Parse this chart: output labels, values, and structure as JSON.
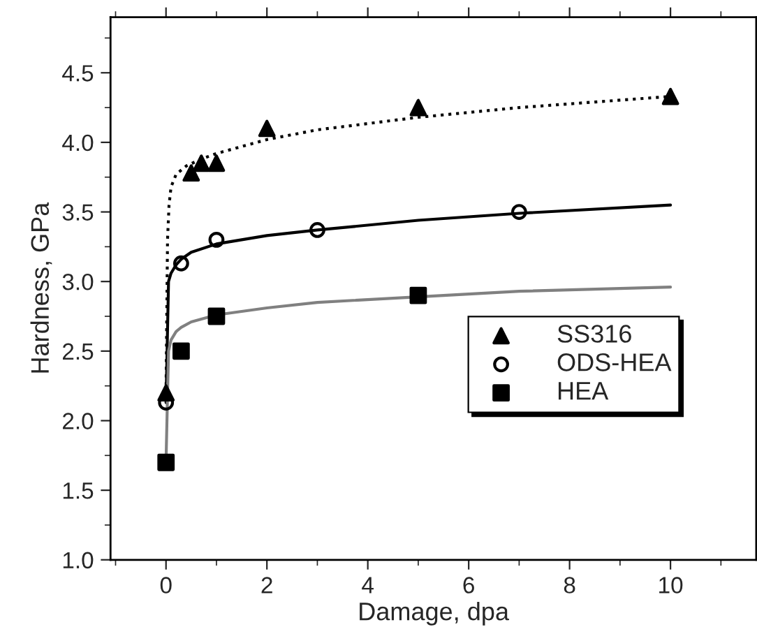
{
  "chart_data": {
    "type": "scatter",
    "xlabel": "Damage, dpa",
    "ylabel": "Hardness, GPa",
    "xlim": [
      -1.1,
      11.7
    ],
    "ylim": [
      1.0,
      4.9
    ],
    "xticks": [
      0,
      2,
      4,
      6,
      8,
      10
    ],
    "yticks": [
      {
        "value": 1.0,
        "label": "1.0"
      },
      {
        "value": 1.5,
        "label": "1.5"
      },
      {
        "value": 2.0,
        "label": "2.0"
      },
      {
        "value": 2.5,
        "label": "2.5"
      },
      {
        "value": 3.0,
        "label": "3.0"
      },
      {
        "value": 3.5,
        "label": "3.5"
      },
      {
        "value": 4.0,
        "label": "4.0"
      },
      {
        "value": 4.5,
        "label": "4.5"
      }
    ],
    "grid": false,
    "legend": "right",
    "series": [
      {
        "name": "SS316",
        "color": "#000000",
        "marker": "triangle",
        "x": [
          0,
          0.5,
          0.7,
          1,
          2,
          5,
          10
        ],
        "values": [
          2.2,
          3.78,
          3.85,
          3.85,
          4.1,
          4.25,
          4.33
        ]
      },
      {
        "name": "ODS-HEA",
        "color": "#000000",
        "marker": "circle",
        "x": [
          0,
          0.3,
          1,
          3,
          7
        ],
        "values": [
          2.13,
          3.13,
          3.3,
          3.37,
          3.5
        ]
      },
      {
        "name": "HEA",
        "color": "#000000",
        "marker": "square",
        "x": [
          0,
          0.3,
          1,
          5
        ],
        "values": [
          1.7,
          2.5,
          2.75,
          2.9
        ]
      },
      {
        "type": "line",
        "color": "#000000",
        "line_style": "dotted",
        "x": [
          0,
          0.03,
          0.06,
          0.1,
          0.2,
          0.4,
          0.7,
          1,
          2,
          3,
          5,
          7,
          10
        ],
        "values": [
          2.2,
          3.3,
          3.55,
          3.68,
          3.77,
          3.83,
          3.88,
          3.92,
          4.02,
          4.09,
          4.18,
          4.25,
          4.33
        ]
      },
      {
        "type": "line",
        "color": "#000000",
        "line_style": "solid",
        "x": [
          0,
          0.05,
          0.1,
          0.2,
          0.3,
          0.5,
          1,
          2,
          3,
          5,
          7,
          10
        ],
        "values": [
          2.13,
          3.0,
          3.06,
          3.12,
          3.16,
          3.21,
          3.27,
          3.33,
          3.37,
          3.44,
          3.49,
          3.55
        ]
      },
      {
        "type": "line",
        "color": "#808080",
        "line_style": "solid",
        "x": [
          0,
          0.05,
          0.1,
          0.2,
          0.3,
          0.5,
          1,
          2,
          3,
          5,
          7,
          10
        ],
        "values": [
          1.7,
          2.5,
          2.58,
          2.64,
          2.67,
          2.71,
          2.76,
          2.81,
          2.85,
          2.89,
          2.93,
          2.96
        ]
      }
    ]
  }
}
